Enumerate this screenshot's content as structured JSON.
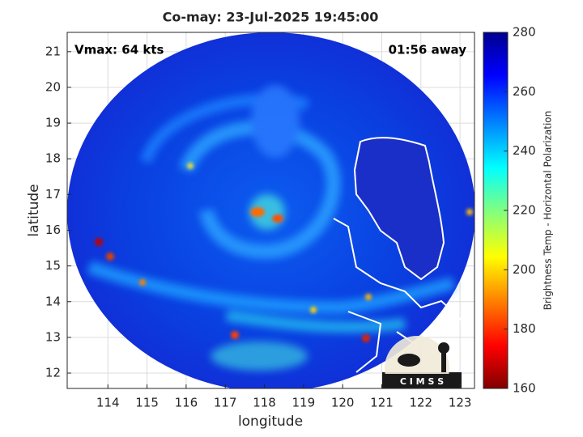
{
  "chart_data": {
    "type": "image",
    "title": "Co-may: 23-Jul-2025 19:45:00",
    "annotations": [
      "Vmax: 64 kts",
      "01:56 away"
    ],
    "xlabel": "longitude",
    "ylabel": "latitude",
    "xlim": [
      112.96,
      123.37
    ],
    "ylim": [
      11.57,
      21.54
    ],
    "xticks": [
      114,
      115,
      116,
      117,
      118,
      119,
      120,
      121,
      122,
      123
    ],
    "yticks": [
      12,
      13,
      14,
      15,
      16,
      17,
      18,
      19,
      20,
      21
    ],
    "grid": true,
    "colorbar": {
      "label": "Brightness Temp - Horizontal Polarization",
      "lim": [
        160,
        280
      ],
      "ticks": [
        160,
        180,
        200,
        220,
        240,
        260,
        280
      ]
    },
    "logo_text": "C I M S S"
  }
}
